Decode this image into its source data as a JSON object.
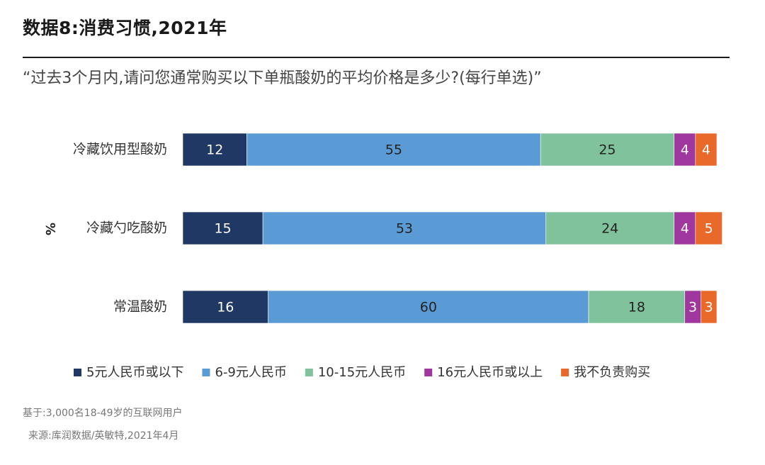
{
  "header": {
    "title": "数据8:消费习惯,2021年",
    "subtitle": "“过去3个月内,请问您通常购买以下单瓶酸奶的平均价格是多少?(每行单选)”"
  },
  "footer": {
    "base_note": "基于:3,000名18-49岁的互联网用户",
    "source_note": "来源:库润数据/英敏特,2021年4月"
  },
  "chart_data": {
    "type": "bar",
    "orientation": "horizontal",
    "stacked": true,
    "title": "",
    "ylabel": "%",
    "xlim": [
      0,
      100
    ],
    "grid": false,
    "legend_position": "bottom",
    "categories": [
      "冷藏饮用型酸奶",
      "冷藏勺吃酸奶",
      "常温酸奶"
    ],
    "series": [
      {
        "name": "5元人民币或以下",
        "color": "#1f3864",
        "values": [
          12,
          15,
          16
        ]
      },
      {
        "name": "6-9元人民币",
        "color": "#5b9bd5",
        "values": [
          55,
          53,
          60
        ]
      },
      {
        "name": "10-15元人民币",
        "color": "#7fc29b",
        "values": [
          25,
          24,
          18
        ]
      },
      {
        "name": "16元人民币或以上",
        "color": "#a0379e",
        "values": [
          4,
          4,
          3
        ]
      },
      {
        "name": "我不负责购买",
        "color": "#e8692a",
        "values": [
          4,
          5,
          3
        ]
      }
    ]
  }
}
